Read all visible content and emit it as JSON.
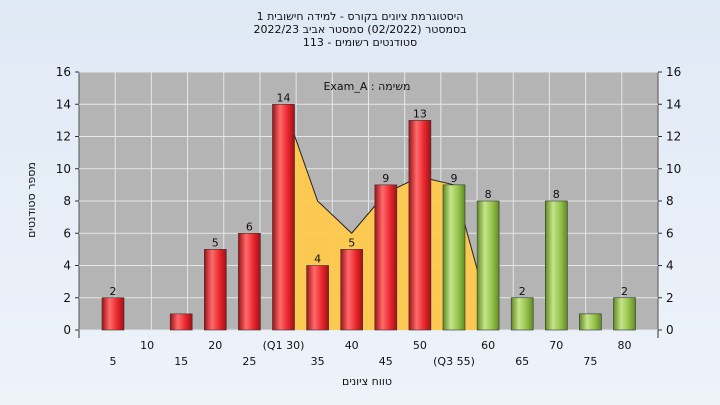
{
  "header": {
    "line1": "היסטוגרמת ציונים בקורס - למידה חישובית 1",
    "line2": "בסמסטר  (02/2022)  סמסטר אביב 2022/23",
    "line3": "סטודנטים רשומים - 113"
  },
  "chart_data": {
    "type": "bar",
    "annotation": "משימה : Exam_A",
    "xlabel": "טווח ציונים",
    "ylabel": "מספר סטודנטים",
    "ylim": [
      0,
      16
    ],
    "yticks": [
      0,
      2,
      4,
      6,
      8,
      10,
      12,
      14,
      16
    ],
    "grid": true,
    "categories": [
      "5",
      "10",
      "15",
      "20",
      "25",
      "(Q1 30)",
      "35",
      "40",
      "45",
      "50",
      "(Q3 55)",
      "60",
      "65",
      "70",
      "75",
      "80"
    ],
    "values": [
      2,
      0,
      1,
      5,
      6,
      14,
      4,
      5,
      9,
      13,
      9,
      8,
      2,
      8,
      1,
      2
    ],
    "data_labels": [
      "2",
      "",
      "",
      "5",
      "6",
      "14",
      "4",
      "5",
      "9",
      "13",
      "9",
      "8",
      "2",
      "8",
      "",
      "2"
    ],
    "bar_colors": [
      "red",
      "red",
      "red",
      "red",
      "red",
      "red",
      "red",
      "red",
      "red",
      "red",
      "green",
      "green",
      "green",
      "green",
      "green",
      "green"
    ],
    "band": {
      "color": "#ffc94d",
      "points": [
        [
          5,
          14
        ],
        [
          6,
          8
        ],
        [
          7,
          6
        ],
        [
          8,
          8.5
        ],
        [
          9,
          9.5
        ],
        [
          10,
          9
        ],
        [
          11,
          1.3
        ]
      ]
    },
    "colors": {
      "red": "#e8262d",
      "green": "#94c24a",
      "plot_bg": "#b4b4b4"
    }
  }
}
